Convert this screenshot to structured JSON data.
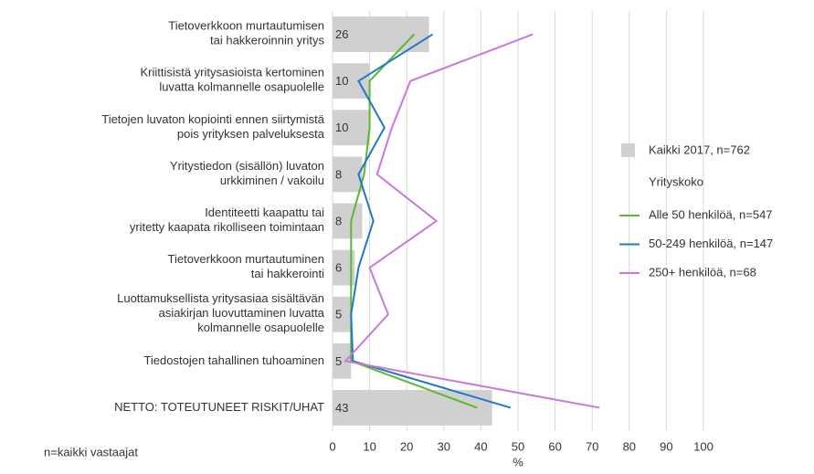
{
  "chart_data": {
    "type": "bar-line",
    "categories": [
      "Tietoverkkoon murtautumisen\ntai hakkeroinnin yritys",
      "Kriittisistä yritysasioista kertominen\nluvatta kolmannelle osapuolelle",
      "Tietojen luvaton kopiointi ennen siirtymistä\npois yrityksen palveluksesta",
      "Yritystiedon (sisällön) luvaton\nurkkiminen / vakoilu",
      "Identiteetti kaapattu tai\nyritetty kaapata rikolliseen toimintaan",
      "Tietoverkkoon murtautuminen\ntai hakkerointi",
      "Luottamuksellista yritysasiaa sisältävän\nasiakirjan luovuttaminen luvatta\nkolmannelle osapuolelle",
      "Tiedostojen tahallinen tuhoaminen",
      "NETTO: TOTEUTUNEET RISKIT/UHAT"
    ],
    "series": [
      {
        "name": "Kaikki 2017, n=762",
        "kind": "bar",
        "color": "#d0d0d0",
        "values": [
          26,
          10,
          10,
          8,
          8,
          6,
          5,
          5,
          43
        ]
      },
      {
        "name": "Alle 50 henkilöä, n=547",
        "kind": "line",
        "color": "#5cb82e",
        "values": [
          22,
          10,
          10,
          8.5,
          5,
          5,
          5,
          5,
          39
        ]
      },
      {
        "name": "50-249 henkilöä, n=147",
        "kind": "line",
        "color": "#1f78c8",
        "values": [
          27,
          7,
          14,
          7,
          11,
          7,
          5,
          5.5,
          48
        ]
      },
      {
        "name": "250+ henkilöä, n=68",
        "kind": "line",
        "color": "#cc77dd",
        "values": [
          54,
          21,
          16,
          12,
          28,
          10,
          15,
          3.5,
          72
        ]
      }
    ],
    "legend_title": "Yrityskoko",
    "xlabel": "%",
    "note": "n=kaikki vastaajat",
    "xlim": [
      0,
      100
    ],
    "xticks": [
      0,
      10,
      20,
      30,
      40,
      50,
      60,
      70,
      80,
      90,
      100
    ],
    "grid": true
  }
}
